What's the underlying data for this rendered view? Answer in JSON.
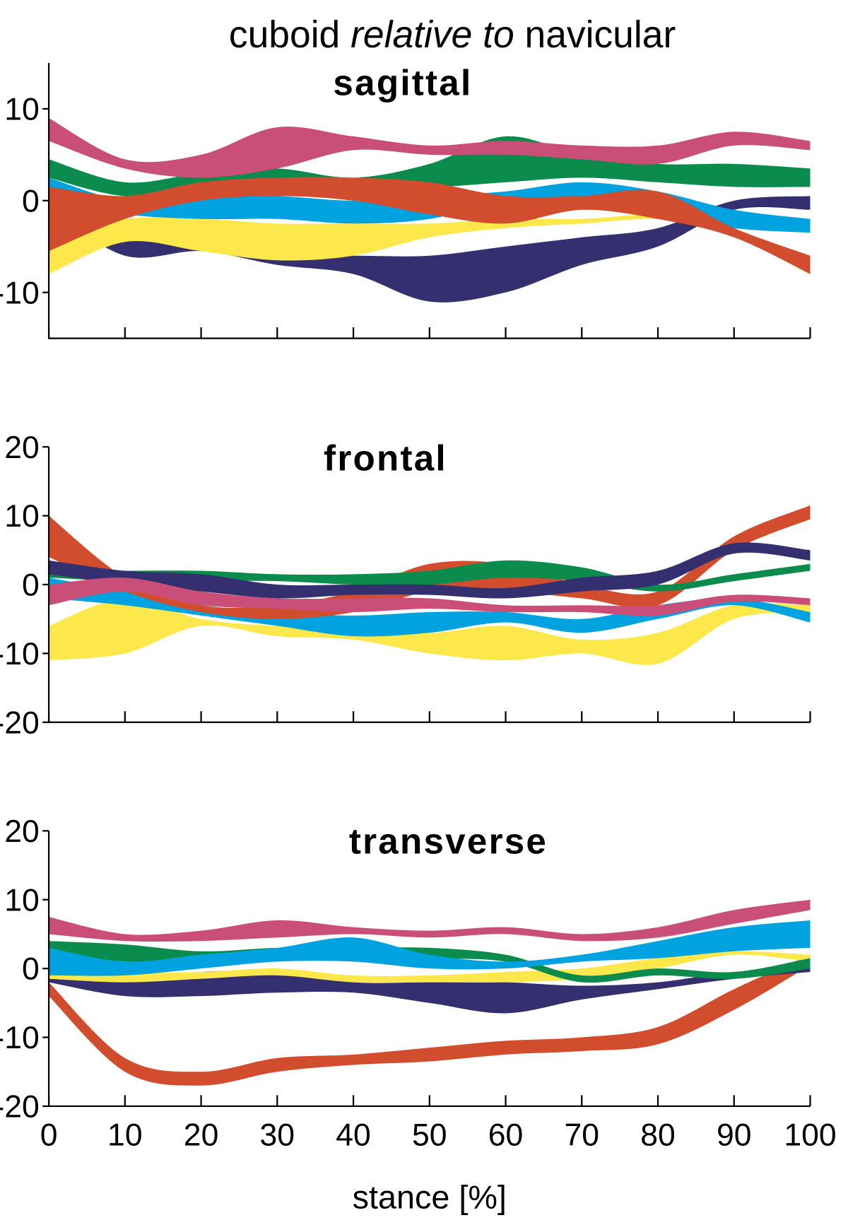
{
  "title": {
    "before": "cuboid",
    "italic": "relative to",
    "after": "navicular"
  },
  "chart_data": [
    {
      "type": "band",
      "title": "sagittal",
      "x": [
        0,
        10,
        20,
        30,
        40,
        50,
        60,
        70,
        80,
        90,
        100
      ],
      "xlim": [
        0,
        100
      ],
      "xticks": [
        0,
        10,
        20,
        30,
        40,
        50,
        60,
        70,
        80,
        90,
        100
      ],
      "ylim": [
        -15,
        15
      ],
      "yticks": [
        -10,
        0,
        10
      ],
      "series": [
        {
          "color": "#34306f",
          "high": [
            0,
            -3.5,
            -4.5,
            -6,
            -6,
            -6,
            -5,
            -4,
            -3,
            0,
            0.5
          ],
          "low": [
            -1,
            -6,
            -5.5,
            -7,
            -8,
            -11,
            -10,
            -7,
            -5,
            -1,
            -1
          ]
        },
        {
          "color": "#fde84c",
          "high": [
            -4,
            -2,
            -2,
            -2.5,
            -2.5,
            -2.5,
            -2,
            -2,
            -1.5,
            -2.5,
            -3
          ],
          "low": [
            -8,
            -4.5,
            -5.5,
            -6.5,
            -6,
            -4,
            -3,
            -2.5,
            -2,
            -3,
            -3.5
          ]
        },
        {
          "color": "#00a3e0",
          "high": [
            2.5,
            0,
            0.5,
            0.5,
            0,
            0.5,
            1,
            2,
            1,
            -1,
            -2
          ],
          "low": [
            0,
            -1.5,
            -2,
            -2,
            -2.5,
            -2,
            0,
            0,
            -1.5,
            -3,
            -3.5
          ]
        },
        {
          "color": "#0c8c4c",
          "high": [
            4.5,
            2,
            3,
            3.5,
            2.5,
            4,
            7,
            5,
            4,
            4,
            3.5
          ],
          "low": [
            2.5,
            0.5,
            1.5,
            2,
            2,
            1.5,
            2,
            2.5,
            2,
            1.5,
            1.5
          ]
        },
        {
          "color": "#d24d2e",
          "high": [
            1.5,
            0.5,
            2,
            2.5,
            2.5,
            2,
            0.5,
            0.5,
            1,
            -3,
            -6
          ],
          "low": [
            -5.5,
            -2,
            0,
            0.5,
            0,
            -1.5,
            -2.5,
            -1,
            -2,
            -4,
            -8
          ]
        },
        {
          "color": "#c94f78",
          "high": [
            9,
            4.5,
            5,
            8,
            7,
            6,
            6.5,
            6,
            6,
            7.5,
            6.5
          ],
          "low": [
            6.5,
            3.5,
            2.5,
            3.5,
            5.5,
            5,
            5,
            4.5,
            4,
            6,
            5.5
          ]
        }
      ]
    },
    {
      "type": "band",
      "title": "frontal",
      "x": [
        0,
        10,
        20,
        30,
        40,
        50,
        60,
        70,
        80,
        90,
        100
      ],
      "xlim": [
        0,
        100
      ],
      "xticks": [
        0,
        10,
        20,
        30,
        40,
        50,
        60,
        70,
        80,
        90,
        100
      ],
      "ylim": [
        -20,
        20
      ],
      "yticks": [
        -20,
        -10,
        0,
        10,
        20
      ],
      "series": [
        {
          "color": "#fde84c",
          "high": [
            -6,
            -2,
            -5,
            -6,
            -6,
            -7,
            -6,
            -8,
            -7,
            -3,
            -3
          ],
          "low": [
            -11,
            -10,
            -6,
            -7.5,
            -8,
            -10,
            -11,
            -10,
            -11.5,
            -5,
            -4
          ]
        },
        {
          "color": "#00a3e0",
          "high": [
            1,
            -1,
            -3,
            -4,
            -4.5,
            -4,
            -4,
            -5,
            -3,
            -2,
            -4
          ],
          "low": [
            -2,
            -3,
            -4.5,
            -6,
            -7.5,
            -7,
            -5.5,
            -7,
            -5,
            -3,
            -5.5
          ]
        },
        {
          "color": "#d24d2e",
          "high": [
            10,
            1,
            -3,
            -3,
            -1,
            3,
            3,
            0,
            -1,
            7,
            11.5
          ],
          "low": [
            4,
            -1,
            -4,
            -5,
            -4,
            -1,
            -1,
            -2,
            -3,
            5,
            9.5
          ]
        },
        {
          "color": "#0c8c4c",
          "high": [
            2,
            2,
            2,
            1.5,
            1.5,
            2,
            3.5,
            2.5,
            0,
            1.5,
            3
          ],
          "low": [
            1,
            0.5,
            0.5,
            0.5,
            0,
            0,
            1,
            0.5,
            -1,
            0.5,
            2
          ]
        },
        {
          "color": "#34306f",
          "high": [
            3.5,
            2,
            1.5,
            0,
            0,
            0,
            -0.5,
            1,
            2,
            6,
            5
          ],
          "low": [
            1.5,
            0,
            -1,
            -2,
            -1.5,
            -1.5,
            -2,
            -1,
            0,
            4.5,
            3.5
          ]
        },
        {
          "color": "#c94f78",
          "high": [
            0,
            1,
            -1,
            -2,
            -2,
            -2,
            -3,
            -3,
            -3,
            -1.5,
            -2
          ],
          "low": [
            -3,
            -1,
            -3,
            -3.5,
            -4,
            -3.5,
            -4,
            -4,
            -4.5,
            -2.5,
            -3
          ]
        }
      ]
    },
    {
      "type": "band",
      "title": "transverse",
      "x": [
        0,
        10,
        20,
        30,
        40,
        50,
        60,
        70,
        80,
        90,
        100
      ],
      "xlim": [
        0,
        100
      ],
      "xticks": [
        0,
        10,
        20,
        30,
        40,
        50,
        60,
        70,
        80,
        90,
        100
      ],
      "xlabel": "stance [%]",
      "ylim": [
        -20,
        20
      ],
      "yticks": [
        -20,
        -10,
        0,
        10,
        20
      ],
      "series": [
        {
          "color": "#d24d2e",
          "high": [
            -2,
            -13,
            -15,
            -13,
            -12.5,
            -11.5,
            -10.5,
            -10,
            -8.5,
            -3,
            2
          ],
          "low": [
            -4,
            -15,
            -17,
            -15,
            -14,
            -13.5,
            -12.5,
            -12,
            -11,
            -6,
            0.5
          ]
        },
        {
          "color": "#34306f",
          "high": [
            -1,
            -2,
            -0.5,
            -0.5,
            -2,
            -2,
            -2,
            -2.5,
            -2,
            -0.5,
            0
          ],
          "low": [
            -2,
            -4,
            -4,
            -3.5,
            -3.5,
            -5,
            -6.5,
            -4.5,
            -3,
            -1.5,
            -0.5
          ]
        },
        {
          "color": "#fde84c",
          "high": [
            1,
            -0.5,
            -0.5,
            0,
            -1,
            -1,
            -0.5,
            0,
            1.5,
            2.5,
            2
          ],
          "low": [
            -1.5,
            -2,
            -1.5,
            -1,
            -2,
            -2,
            -2,
            -1.5,
            0,
            2,
            1
          ]
        },
        {
          "color": "#0c8c4c",
          "high": [
            4,
            3.5,
            2.5,
            3,
            3,
            3,
            2,
            -1,
            0,
            -0.5,
            1.5
          ],
          "low": [
            2.5,
            1,
            1.5,
            2,
            2,
            1.5,
            1,
            -2,
            -1,
            -1.5,
            0
          ]
        },
        {
          "color": "#00a3e0",
          "high": [
            3,
            1,
            2,
            3,
            4.5,
            2,
            1,
            2,
            4,
            6,
            7
          ],
          "low": [
            -1,
            -1,
            0,
            1,
            1,
            0,
            0,
            1,
            1.5,
            2.5,
            3
          ]
        },
        {
          "color": "#c94f78",
          "high": [
            7.5,
            5,
            5.5,
            7,
            6,
            5.5,
            6,
            5,
            6,
            8.5,
            10
          ],
          "low": [
            5,
            4,
            4,
            4.5,
            5,
            4.5,
            5,
            4,
            4.5,
            6.5,
            8.5
          ]
        }
      ]
    }
  ]
}
